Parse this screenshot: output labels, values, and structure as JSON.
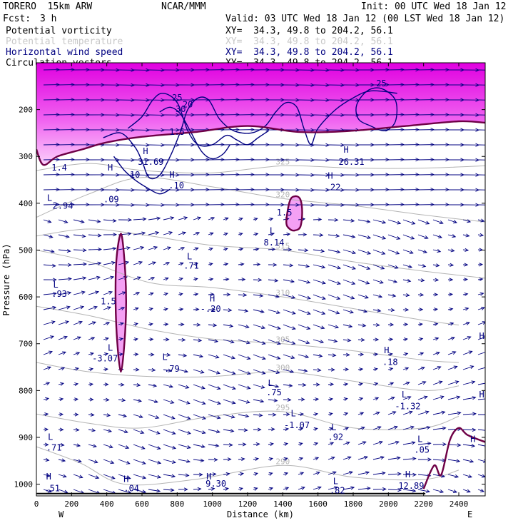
{
  "header": {
    "model": "TORERO  15km ARW",
    "center": "NCAR/MMM",
    "init": "Init: 00 UTC Wed 18 Jan 12",
    "fcst_label": "Fcst:",
    "fcst_value": "3 h",
    "valid": "Valid: 03 UTC Wed 18 Jan 12 (00 LST Wed 18 Jan 12)"
  },
  "legend": [
    {
      "name": "Potential vorticity",
      "xy": "XY=  34.3, 49.8 to 204.2, 56.1",
      "color": "#000000"
    },
    {
      "name": "Potential temperature",
      "xy": "XY=  34.3, 49.8 to 204.2, 56.1",
      "color": "#c8c8c8"
    },
    {
      "name": "Horizontal wind speed",
      "xy": "XY=  34.3, 49.8 to 204.2, 56.1",
      "color": "#000080"
    },
    {
      "name": "Circulation vectors",
      "xy": "XY=  34.3, 49.8 to 204.2, 56.1",
      "color": "#000000"
    }
  ],
  "axes": {
    "ylabel": "Pressure (hPa)",
    "xlabel": "Distance (km)",
    "left_end": "W",
    "right_end": "E"
  },
  "chart_data": {
    "type": "cross-section",
    "xlim": [
      0,
      2550
    ],
    "ylim": [
      1025,
      100
    ],
    "x_ticks": [
      0,
      200,
      400,
      600,
      800,
      1000,
      1200,
      1400,
      1600,
      1800,
      2000,
      2200,
      2400
    ],
    "y_ticks": [
      200,
      300,
      400,
      500,
      600,
      700,
      800,
      900,
      1000
    ],
    "x_tick_labels": [
      "0",
      "200",
      "400",
      "600",
      "800",
      "1000",
      "1200",
      "1400",
      "1600",
      "1800",
      "2000",
      "2200",
      "2400"
    ],
    "y_tick_labels": [
      "200",
      "300",
      "400",
      "500",
      "600",
      "700",
      "800",
      "900",
      "1000"
    ],
    "pv_fill_color": "#ff00ff",
    "theta_color": "#b4b4b4",
    "wind_color": "#000080",
    "pv_line_color": "#6e0046",
    "theta_contours": [
      {
        "label": "290",
        "points": [
          [
            0,
            920
          ],
          [
            250,
            955
          ],
          [
            500,
            1000
          ],
          [
            900,
            990
          ],
          [
            1400,
            960
          ],
          [
            1800,
            985
          ],
          [
            2200,
            990
          ],
          [
            2400,
            970
          ]
        ]
      },
      {
        "label": "295",
        "points": [
          [
            0,
            850
          ],
          [
            300,
            870
          ],
          [
            600,
            880
          ],
          [
            1000,
            855
          ],
          [
            1400,
            845
          ],
          [
            1800,
            880
          ],
          [
            2200,
            880
          ],
          [
            2400,
            855
          ]
        ]
      },
      {
        "label": "300",
        "points": [
          [
            0,
            740
          ],
          [
            300,
            760
          ],
          [
            650,
            770
          ],
          [
            1000,
            770
          ],
          [
            1400,
            760
          ],
          [
            1800,
            780
          ],
          [
            2200,
            800
          ],
          [
            2400,
            790
          ]
        ]
      },
      {
        "label": "305",
        "points": [
          [
            0,
            620
          ],
          [
            300,
            640
          ],
          [
            650,
            670
          ],
          [
            1000,
            690
          ],
          [
            1400,
            700
          ],
          [
            1800,
            715
          ],
          [
            2200,
            735
          ],
          [
            2400,
            740
          ]
        ]
      },
      {
        "label": "310",
        "points": [
          [
            0,
            500
          ],
          [
            300,
            525
          ],
          [
            650,
            570
          ],
          [
            1000,
            580
          ],
          [
            1400,
            600
          ],
          [
            1800,
            625
          ],
          [
            2200,
            650
          ],
          [
            2400,
            660
          ]
        ]
      },
      {
        "label": "315",
        "points": [
          [
            0,
            470
          ],
          [
            300,
            455
          ],
          [
            650,
            470
          ],
          [
            1000,
            490
          ],
          [
            1400,
            500
          ],
          [
            1800,
            525
          ],
          [
            2200,
            545
          ],
          [
            2550,
            560
          ]
        ]
      },
      {
        "label": "320",
        "points": [
          [
            0,
            430
          ],
          [
            300,
            380
          ],
          [
            600,
            345
          ],
          [
            1000,
            365
          ],
          [
            1400,
            390
          ],
          [
            1800,
            405
          ],
          [
            2200,
            425
          ],
          [
            2550,
            440
          ]
        ]
      },
      {
        "label": "325",
        "points": [
          [
            0,
            330
          ],
          [
            300,
            315
          ],
          [
            600,
            330
          ],
          [
            1000,
            335
          ],
          [
            1400,
            320
          ],
          [
            1800,
            325
          ],
          [
            2200,
            325
          ],
          [
            2550,
            320
          ]
        ]
      }
    ],
    "pv_contours": [
      {
        "label": "1.5",
        "points": [
          [
            0,
            285
          ],
          [
            40,
            318
          ],
          [
            120,
            300
          ],
          [
            260,
            285
          ],
          [
            400,
            270
          ],
          [
            600,
            258
          ],
          [
            900,
            248
          ],
          [
            1200,
            235
          ],
          [
            1500,
            248
          ],
          [
            1800,
            245
          ],
          [
            2100,
            235
          ],
          [
            2400,
            225
          ],
          [
            2550,
            228
          ]
        ]
      },
      {
        "label": "1.5",
        "closed": true,
        "points": [
          [
            1420,
            440
          ],
          [
            1440,
            395
          ],
          [
            1470,
            385
          ],
          [
            1500,
            392
          ],
          [
            1510,
            420
          ],
          [
            1500,
            450
          ],
          [
            1470,
            458
          ],
          [
            1440,
            455
          ]
        ]
      },
      {
        "label": "1.5",
        "closed": true,
        "points": [
          [
            450,
            610
          ],
          [
            455,
            520
          ],
          [
            480,
            465
          ],
          [
            500,
            520
          ],
          [
            510,
            610
          ],
          [
            500,
            700
          ],
          [
            480,
            760
          ],
          [
            460,
            700
          ]
        ]
      },
      {
        "label": "",
        "points": [
          [
            2200,
            1010
          ],
          [
            2260,
            960
          ],
          [
            2300,
            980
          ],
          [
            2350,
            905
          ],
          [
            2400,
            880
          ],
          [
            2450,
            895
          ],
          [
            2550,
            910
          ]
        ]
      }
    ],
    "wind_contours": [
      {
        "label": "20",
        "points": [
          [
            380,
            260
          ],
          [
            480,
            250
          ],
          [
            560,
            280
          ],
          [
            600,
            310
          ],
          [
            640,
            345
          ],
          [
            700,
            340
          ],
          [
            760,
            300
          ],
          [
            820,
            245
          ],
          [
            860,
            200
          ],
          [
            920,
            175
          ],
          [
            980,
            180
          ],
          [
            1040,
            220
          ],
          [
            1120,
            245
          ],
          [
            1220,
            250
          ],
          [
            1300,
            235
          ],
          [
            1360,
            205
          ],
          [
            1420,
            185
          ],
          [
            1480,
            195
          ],
          [
            1520,
            240
          ],
          [
            1560,
            275
          ],
          [
            1600,
            240
          ],
          [
            1700,
            200
          ],
          [
            1800,
            175
          ],
          [
            1900,
            160
          ],
          [
            2050,
            165
          ]
        ]
      },
      {
        "label": "25",
        "points": [
          [
            520,
            240
          ],
          [
            600,
            215
          ],
          [
            660,
            180
          ],
          [
            720,
            165
          ],
          [
            800,
            185
          ],
          [
            860,
            245
          ],
          [
            920,
            275
          ],
          [
            1000,
            275
          ],
          [
            1080,
            255
          ],
          [
            1140,
            265
          ],
          [
            1200,
            275
          ],
          [
            1260,
            260
          ],
          [
            1320,
            245
          ]
        ]
      },
      {
        "label": "30",
        "points": [
          [
            700,
            205
          ],
          [
            760,
            195
          ],
          [
            820,
            210
          ],
          [
            880,
            250
          ],
          [
            940,
            290
          ],
          [
            1000,
            305
          ],
          [
            1060,
            295
          ],
          [
            1100,
            275
          ]
        ]
      },
      {
        "label": "25",
        "closed": true,
        "points": [
          [
            1820,
            190
          ],
          [
            1880,
            160
          ],
          [
            1960,
            155
          ],
          [
            2040,
            180
          ],
          [
            2040,
            225
          ],
          [
            1980,
            245
          ],
          [
            1900,
            235
          ],
          [
            1830,
            220
          ]
        ]
      },
      {
        "label": "10",
        "points": [
          [
            440,
            300
          ],
          [
            500,
            330
          ],
          [
            560,
            350
          ],
          [
            620,
            365
          ],
          [
            700,
            380
          ],
          [
            760,
            370
          ]
        ]
      }
    ],
    "extrema_labels": [
      {
        "x": 130,
        "p": 330,
        "text": "1.4"
      },
      {
        "x": 75,
        "p": 395,
        "text": "L"
      },
      {
        "x": 150,
        "p": 412,
        "text": "2.94"
      },
      {
        "x": 420,
        "p": 330,
        "text": "H"
      },
      {
        "x": 425,
        "p": 398,
        "text": ".09"
      },
      {
        "x": 620,
        "p": 295,
        "text": "H"
      },
      {
        "x": 650,
        "p": 318,
        "text": "31.69"
      },
      {
        "x": 770,
        "p": 345,
        "text": "H"
      },
      {
        "x": 795,
        "p": 368,
        "text": ".10"
      },
      {
        "x": 1340,
        "p": 465,
        "text": "L"
      },
      {
        "x": 1350,
        "p": 490,
        "text": "8.14"
      },
      {
        "x": 1670,
        "p": 348,
        "text": "H"
      },
      {
        "x": 1685,
        "p": 372,
        "text": ".22"
      },
      {
        "x": 1760,
        "p": 292,
        "text": "H"
      },
      {
        "x": 1790,
        "p": 318,
        "text": "26.31"
      },
      {
        "x": 870,
        "p": 520,
        "text": "L"
      },
      {
        "x": 880,
        "p": 540,
        "text": ".71"
      },
      {
        "x": 110,
        "p": 580,
        "text": "L"
      },
      {
        "x": 130,
        "p": 600,
        "text": ".93"
      },
      {
        "x": 1000,
        "p": 610,
        "text": "H"
      },
      {
        "x": 990,
        "p": 632,
        "text": "-.20"
      },
      {
        "x": 420,
        "p": 715,
        "text": "L"
      },
      {
        "x": 390,
        "p": 738,
        "text": "-3.07"
      },
      {
        "x": 730,
        "p": 735,
        "text": "L"
      },
      {
        "x": 770,
        "p": 760,
        "text": ".79"
      },
      {
        "x": 1990,
        "p": 720,
        "text": "H"
      },
      {
        "x": 2010,
        "p": 745,
        "text": ".18"
      },
      {
        "x": 1330,
        "p": 790,
        "text": "L"
      },
      {
        "x": 1350,
        "p": 810,
        "text": ".75"
      },
      {
        "x": 2090,
        "p": 815,
        "text": "L"
      },
      {
        "x": 2110,
        "p": 840,
        "text": "-1.32"
      },
      {
        "x": 1460,
        "p": 855,
        "text": "L"
      },
      {
        "x": 1480,
        "p": 880,
        "text": "-1.07"
      },
      {
        "x": 1690,
        "p": 885,
        "text": "L"
      },
      {
        "x": 1700,
        "p": 905,
        "text": ".92"
      },
      {
        "x": 80,
        "p": 905,
        "text": "L"
      },
      {
        "x": 100,
        "p": 928,
        "text": ".71"
      },
      {
        "x": 2180,
        "p": 910,
        "text": "L"
      },
      {
        "x": 2190,
        "p": 933,
        "text": ".05"
      },
      {
        "x": 2480,
        "p": 910,
        "text": "H"
      },
      {
        "x": 70,
        "p": 990,
        "text": "H"
      },
      {
        "x": 90,
        "p": 1015,
        "text": ".51"
      },
      {
        "x": 510,
        "p": 995,
        "text": "H"
      },
      {
        "x": 540,
        "p": 1015,
        "text": ".04"
      },
      {
        "x": 980,
        "p": 990,
        "text": "H"
      },
      {
        "x": 1020,
        "p": 1005,
        "text": "9.30"
      },
      {
        "x": 1700,
        "p": 1000,
        "text": "L"
      },
      {
        "x": 1710,
        "p": 1020,
        "text": ".82"
      },
      {
        "x": 2110,
        "p": 985,
        "text": "H"
      },
      {
        "x": 2130,
        "p": 1010,
        "text": "12.89"
      },
      {
        "x": 2530,
        "p": 690,
        "text": "H"
      },
      {
        "x": 2530,
        "p": 815,
        "text": "H"
      }
    ]
  }
}
